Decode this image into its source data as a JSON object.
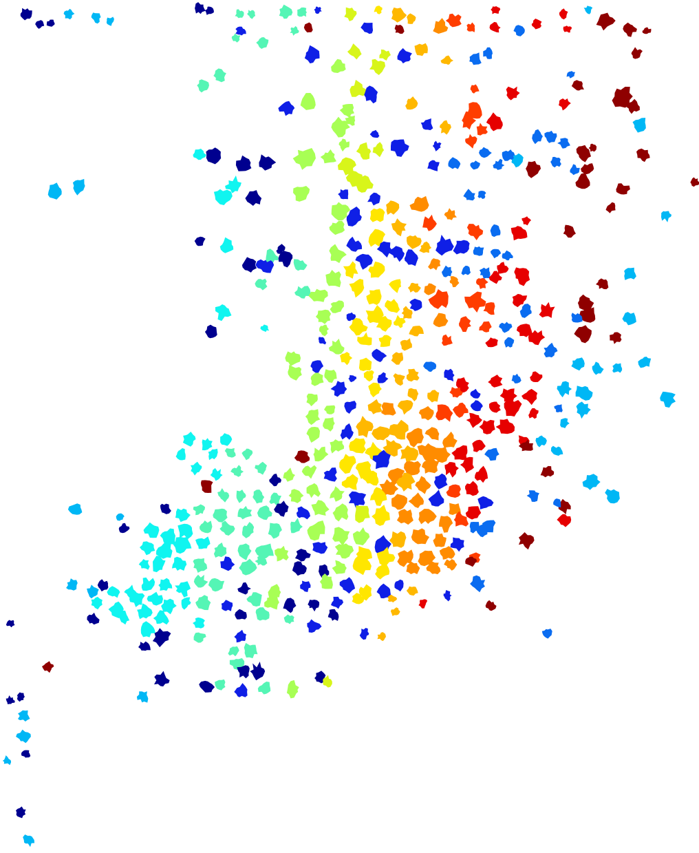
{
  "image": {
    "description_colormap": "jet",
    "background": "#ffffff",
    "palette": {
      "navy": "#00008f",
      "blue": "#0f1fe6",
      "azure": "#0a6cf0",
      "sky": "#00b7f5",
      "cyan": "#10f5f0",
      "aqua": "#55f5b5",
      "lime": "#a8ff55",
      "chartreuse": "#d8f51a",
      "yellow": "#ffe600",
      "amber": "#ffb800",
      "orange": "#ff8c00",
      "redorange": "#ff3d00",
      "red": "#e60000",
      "maroon": "#8f0000"
    }
  }
}
